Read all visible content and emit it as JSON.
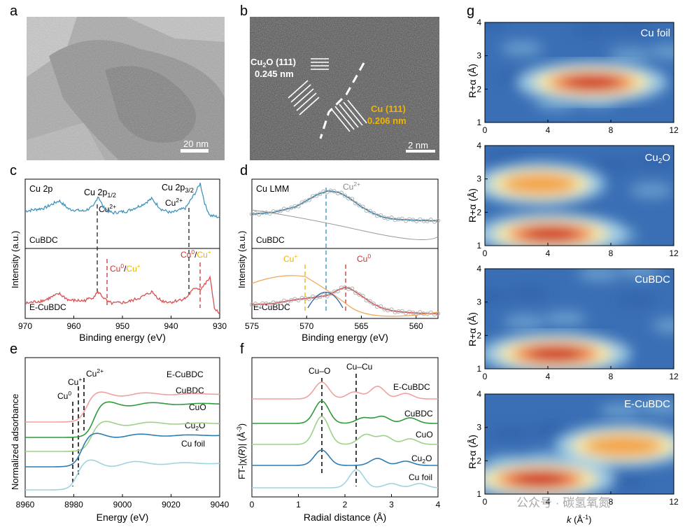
{
  "panel_letters": {
    "a": "a",
    "b": "b",
    "c": "c",
    "d": "d",
    "e": "e",
    "f": "f",
    "g": "g"
  },
  "tem": {
    "scale_a": "20 nm",
    "scale_b": "2 nm",
    "cu2o_label": "Cu",
    "cu2o_sub": "2",
    "cu2o_label_rest": "O (111)",
    "cu2o_spacing": "0.245 nm",
    "cu_label": "Cu (111)",
    "cu_spacing": "0.206 nm",
    "label_color_cu": "#f0b400"
  },
  "chart_data": [
    {
      "id": "c",
      "type": "line",
      "panel_title": "Cu 2p",
      "xlabel": "Binding energy (eV)",
      "ylabel": "Intensity (a.u.)",
      "xlim": [
        970,
        930
      ],
      "xticks": [
        970,
        960,
        950,
        940,
        930
      ],
      "series": [
        {
          "name": "CuBDC",
          "color": "#3f94bd",
          "x": [
            970,
            966,
            963,
            961,
            958,
            956,
            955,
            954,
            953,
            952,
            949,
            946,
            944,
            942,
            940,
            937,
            935,
            934,
            933,
            932,
            930
          ],
          "y": [
            0.55,
            0.6,
            0.72,
            0.58,
            0.55,
            0.62,
            0.8,
            0.62,
            0.55,
            0.52,
            0.55,
            0.65,
            0.75,
            0.58,
            0.52,
            0.6,
            0.85,
            1.0,
            0.65,
            0.48,
            0.45
          ]
        },
        {
          "name": "E-CuBDC",
          "color": "#d95050",
          "x": [
            970,
            966,
            963,
            961,
            958,
            956,
            955,
            954,
            953,
            952,
            949,
            946,
            944,
            942,
            940,
            937,
            935,
            934,
            933,
            932,
            931,
            930
          ],
          "y": [
            0.2,
            0.25,
            0.35,
            0.25,
            0.24,
            0.3,
            0.38,
            0.3,
            0.22,
            0.2,
            0.22,
            0.3,
            0.38,
            0.24,
            0.22,
            0.28,
            0.45,
            0.42,
            0.5,
            0.6,
            0.1,
            0.05
          ]
        }
      ],
      "annotations": [
        "Cu 2p1/2",
        "Cu 2p3/2",
        "Cu2+",
        "Cu2+",
        "Cu0/Cu+",
        "Cu0/Cu+"
      ],
      "ann": {
        "p12": "Cu 2p",
        "p12sub": "1/2",
        "p32": "Cu 2p",
        "p32sub": "3/2",
        "cu2plus": "Cu",
        "sup2": "2+",
        "cu0": "Cu",
        "sup0": "0",
        "slash": "/",
        "cup": "Cu",
        "supp": "+"
      }
    },
    {
      "id": "d",
      "type": "line",
      "panel_title": "Cu LMM",
      "xlabel": "Binding energy (eV)",
      "ylabel": "Intensity (a.u.)",
      "xlim": [
        575,
        558
      ],
      "xticks": [
        575,
        570,
        565,
        560
      ],
      "series": [
        {
          "name": "CuBDC",
          "color": "#2e7fa8",
          "x": [
            575,
            573,
            571,
            570,
            569,
            568,
            567,
            566,
            565,
            564,
            563,
            562,
            560,
            558
          ],
          "y": [
            0.5,
            0.53,
            0.62,
            0.72,
            0.82,
            0.88,
            0.85,
            0.75,
            0.62,
            0.52,
            0.45,
            0.42,
            0.4,
            0.39
          ]
        },
        {
          "name": "E-CuBDC",
          "color": "#d95050",
          "x": [
            575,
            573,
            571,
            570,
            569,
            568,
            567,
            566.5,
            566,
            565,
            564,
            563,
            562,
            560,
            558
          ],
          "y": [
            0.18,
            0.2,
            0.26,
            0.28,
            0.3,
            0.33,
            0.42,
            0.45,
            0.43,
            0.32,
            0.2,
            0.12,
            0.08,
            0.05,
            0.04
          ]
        }
      ],
      "ann": {
        "cu2p": "Cu",
        "sup2": "2+",
        "cup": "Cu",
        "supp": "+",
        "cu0": "Cu",
        "sup0": "0",
        "sample1": "CuBDC",
        "sample2": "E-CuBDC"
      }
    },
    {
      "id": "e",
      "type": "line",
      "xlabel": "Energy (eV)",
      "ylabel": "Normalized adsorbance",
      "xlim": [
        8960,
        9040
      ],
      "xticks": [
        8960,
        8980,
        9000,
        9020,
        9040
      ],
      "series": [
        {
          "name": "E-CuBDC",
          "color": "#f0a0a0"
        },
        {
          "name": "CuBDC",
          "color": "#2e9a3a"
        },
        {
          "name": "CuO",
          "color": "#9fd08a"
        },
        {
          "name": "Cu2O",
          "color": "#2d7cb0"
        },
        {
          "name": "Cu foil",
          "color": "#9fd3e0"
        }
      ],
      "ann": {
        "cu0": "Cu",
        "sup0": "0",
        "cup": "Cu",
        "supp": "+",
        "cu2": "Cu",
        "sup2": "2+"
      }
    },
    {
      "id": "f",
      "type": "line",
      "xlabel": "Radial distance (Å)",
      "ylabel": "FT-|χ(R)| (Å⁻³)",
      "xlim": [
        0,
        4
      ],
      "xticks": [
        0,
        1,
        2,
        3,
        4
      ],
      "series": [
        {
          "name": "E-CuBDC",
          "color": "#f0a0a0"
        },
        {
          "name": "CuBDC",
          "color": "#2e9a3a"
        },
        {
          "name": "CuO",
          "color": "#9fd08a"
        },
        {
          "name": "Cu2O",
          "color": "#2d7cb0"
        },
        {
          "name": "Cu foil",
          "color": "#9fd3e0"
        }
      ],
      "ann": {
        "cuo": "Cu–O",
        "cucu": "Cu–Cu"
      }
    },
    {
      "id": "g",
      "type": "heatmap",
      "xlabel": "k (Å⁻¹)",
      "ylabel": "R+α (Å)",
      "xlim": [
        0,
        12
      ],
      "ylim": [
        1,
        4
      ],
      "xticks": [
        0,
        4,
        8,
        12
      ],
      "yticks": [
        1,
        2,
        3,
        4
      ],
      "maps": [
        {
          "name": "Cu foil",
          "peaks": [
            {
              "k": 6.8,
              "r": 2.2,
              "amp": 1.0
            }
          ]
        },
        {
          "name": "Cu2O",
          "peaks": [
            {
              "k": 4.2,
              "r": 1.35,
              "amp": 1.0
            },
            {
              "k": 3.5,
              "r": 2.85,
              "amp": 0.55
            }
          ]
        },
        {
          "name": "CuBDC",
          "peaks": [
            {
              "k": 4.5,
              "r": 1.45,
              "amp": 1.0
            }
          ]
        },
        {
          "name": "E-CuBDC",
          "peaks": [
            {
              "k": 3.5,
              "r": 1.45,
              "amp": 1.0
            },
            {
              "k": 8.8,
              "r": 2.45,
              "amp": 0.7
            }
          ]
        }
      ]
    }
  ],
  "labels": {
    "g_names": [
      "Cu foil",
      "Cu",
      "CuBDC",
      "E-CuBDC"
    ],
    "g_cu2o_sub": "2",
    "g_cu2o_rest": "O",
    "ylabel_g": "R+α (Å)",
    "xlabel_g_k": "k",
    "xlabel_g_rest": " (Å",
    "xlabel_g_sup": "-1",
    "xlabel_g_close": ")",
    "e_names": [
      "E-CuBDC",
      "CuBDC",
      "CuO",
      "Cu",
      "Cu foil"
    ],
    "e_cu2o_sub": "2",
    "e_cu2o_rest": "O",
    "f_names": [
      "E-CuBDC",
      "CuBDC",
      "CuO",
      "Cu",
      "Cu foil"
    ],
    "f_ylabel_a": "FT-|χ(",
    "f_ylabel_r": "R",
    "f_ylabel_b": ")| (Å",
    "f_ylabel_sup": "-3",
    "f_ylabel_c": ")"
  },
  "watermark": "公众号 · 碳氢氧氮"
}
